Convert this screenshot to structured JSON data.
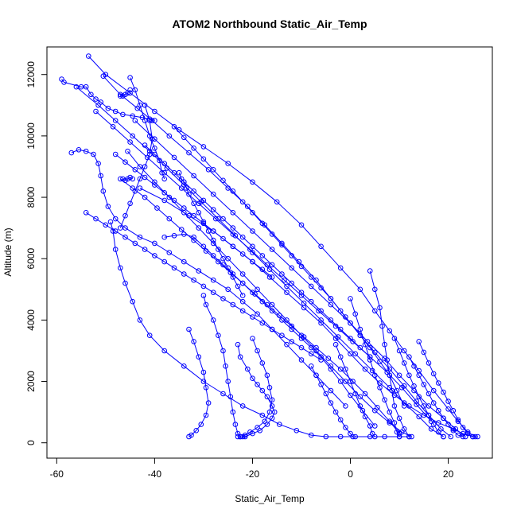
{
  "chart_data": {
    "type": "line",
    "title": "ATOM2 Northbound Static_Air_Temp",
    "xlabel": "Static_Air_Temp",
    "ylabel": "Altitude (m)",
    "xlim": [
      -62,
      29
    ],
    "ylim": [
      -500,
      12900
    ],
    "xticks": [
      -60,
      -40,
      -20,
      0,
      20
    ],
    "yticks": [
      0,
      2000,
      4000,
      6000,
      8000,
      10000,
      12000
    ],
    "grid": false,
    "marker": "open-circle",
    "color": "#0000ff",
    "series": [
      {
        "x": [
          -59.0,
          -58.5,
          -55.0,
          -54.0,
          -53.0,
          -52.0,
          -51.0,
          -49.5,
          -48.0,
          -46.5,
          -44.5,
          -42.5,
          -41.0,
          -40.0
        ],
        "y": [
          11850,
          11750,
          11600,
          11600,
          11350,
          11200,
          11100,
          10900,
          10800,
          10700,
          10650,
          10600,
          10550,
          10500
        ]
      },
      {
        "x": [
          -53.5,
          -50.0,
          -45.0,
          -40.0,
          -35.0,
          -30.0,
          -25.0,
          -20.0,
          -15.0,
          -10.0,
          -6.0,
          -2.0,
          2.0,
          5.0,
          8.0,
          11.0,
          14.0,
          17.0,
          20.0,
          22.0,
          24.0,
          25.5
        ],
        "y": [
          12600,
          12000,
          11400,
          10800,
          10200,
          9650,
          9100,
          8500,
          7850,
          7100,
          6400,
          5700,
          5000,
          4300,
          3650,
          3000,
          2350,
          1700,
          1100,
          700,
          350,
          200
        ]
      },
      {
        "x": [
          -50.5,
          -47.0,
          -43.5,
          -40.5,
          -37.0,
          -33.0,
          -29.0,
          -25.0,
          -21.0,
          -17.5,
          -14.0,
          -10.5,
          -7.0,
          -4.0,
          -1.0,
          2.0,
          5.0,
          8.0,
          11.0,
          13.5,
          16.0,
          18.5,
          20.5
        ],
        "y": [
          11950,
          11350,
          10900,
          10500,
          10000,
          9450,
          8900,
          8300,
          7700,
          7100,
          6500,
          5900,
          5300,
          4700,
          4100,
          3500,
          2950,
          2400,
          1850,
          1350,
          900,
          450,
          200
        ]
      },
      {
        "x": [
          -49.0,
          -48.5,
          -48.0,
          -47.0,
          -46.0,
          -44.5,
          -43.0,
          -41.0,
          -38.0,
          -34.0,
          -30.0,
          -26.0,
          -22.0,
          -18.0,
          -14.5,
          -11.0,
          -8.0,
          -5.0,
          -2.0,
          1.0,
          4.0,
          7.0,
          10.0,
          12.0
        ],
        "y": [
          7200,
          6900,
          6300,
          5700,
          5200,
          4600,
          4000,
          3500,
          3000,
          2500,
          2000,
          1600,
          1200,
          900,
          600,
          400,
          250,
          200,
          200,
          200,
          200,
          200,
          200,
          200
        ]
      },
      {
        "x": [
          -43.0,
          -38.0,
          -33.0,
          -28.0,
          -24.0,
          -20.0,
          -16.5,
          -13.0,
          -9.5,
          -6.0,
          -3.0,
          0.0,
          3.0,
          6.0,
          9.0,
          12.0,
          15.0,
          18.0,
          21.0,
          23.0,
          25.0,
          26.0
        ],
        "y": [
          8300,
          7900,
          7400,
          6900,
          6400,
          5900,
          5400,
          4900,
          4400,
          3900,
          3400,
          2900,
          2400,
          1950,
          1550,
          1200,
          900,
          650,
          450,
          300,
          200,
          200
        ]
      },
      {
        "x": [
          -44.0,
          -40.0,
          -36.0,
          -32.0,
          -28.0,
          -24.0,
          -20.0,
          -16.0,
          -12.0,
          -8.0,
          -4.0,
          0.0,
          3.5,
          7.0,
          10.0,
          13.0,
          16.0,
          19.0,
          21.5,
          23.5
        ],
        "y": [
          10500,
          9900,
          9300,
          8700,
          8100,
          7500,
          6900,
          6300,
          5700,
          5100,
          4500,
          3900,
          3300,
          2750,
          2200,
          1700,
          1200,
          800,
          450,
          200
        ]
      },
      {
        "x": [
          -56.0,
          -51.5,
          -48.0,
          -44.5,
          -41.0,
          -37.5,
          -34.0,
          -30.5,
          -27.0,
          -23.5,
          -20.0,
          -16.5,
          -13.0,
          -9.5,
          -6.0,
          -2.5,
          1.0,
          4.5,
          8.0,
          11.0,
          14.0,
          16.5,
          19.0
        ],
        "y": [
          11600,
          11000,
          10500,
          10000,
          9500,
          8950,
          8400,
          7850,
          7300,
          6750,
          6200,
          5650,
          5100,
          4550,
          4000,
          3450,
          2900,
          2350,
          1800,
          1300,
          850,
          450,
          200
        ]
      },
      {
        "x": [
          -52.0,
          -48.5,
          -45.0,
          -41.5,
          -38.0,
          -34.5,
          -31.0,
          -27.5,
          -24.0,
          -20.5,
          -17.0,
          -13.5,
          -10.0,
          -6.5,
          -3.0,
          0.5,
          4.0,
          7.5,
          10.5,
          13.5,
          16.5
        ],
        "y": [
          10800,
          10300,
          9800,
          9300,
          8800,
          8300,
          7800,
          7300,
          6800,
          6300,
          5800,
          5300,
          4800,
          4300,
          3800,
          3300,
          2800,
          2300,
          1800,
          1250,
          700
        ]
      },
      {
        "x": [
          -45.5,
          -43.0,
          -40.0,
          -37.0,
          -34.0,
          -31.0,
          -28.0,
          -25.0,
          -22.0,
          -19.0,
          -16.0,
          -13.0,
          -10.0,
          -7.0,
          -4.0,
          -1.0,
          2.0,
          5.0,
          8.0,
          10.5,
          12.5
        ],
        "y": [
          9500,
          9000,
          8500,
          8000,
          7500,
          7000,
          6500,
          6000,
          5500,
          5000,
          4500,
          4000,
          3500,
          3000,
          2500,
          2000,
          1500,
          1050,
          650,
          350,
          200
        ]
      },
      {
        "x": [
          -57.0,
          -55.5,
          -54.0,
          -52.5,
          -51.5,
          -51.0,
          -50.5,
          -49.5,
          -48.0,
          -46.0,
          -43.0,
          -40.0,
          -37.0,
          -34.0,
          -31.0,
          -28.0,
          -25.0,
          -22.0,
          -19.0,
          -16.0,
          -13.0,
          -10.0,
          -7.0,
          -4.0,
          -1.0
        ],
        "y": [
          9450,
          9550,
          9500,
          9400,
          9100,
          8700,
          8200,
          7700,
          7300,
          7000,
          6700,
          6500,
          6200,
          5900,
          5600,
          5300,
          5000,
          4600,
          4200,
          3700,
          3200,
          2700,
          2200,
          1700,
          1200
        ]
      },
      {
        "x": [
          -47.0,
          -44.5,
          -42.0,
          -39.5,
          -37.0,
          -34.5,
          -32.0,
          -29.5,
          -27.0,
          -24.5,
          -22.0,
          -19.5,
          -17.0,
          -14.5,
          -12.0,
          -9.5,
          -7.0,
          -4.5,
          -2.0,
          0.5,
          3.0,
          5.5,
          8.0,
          10.0
        ],
        "y": [
          8600,
          8300,
          8000,
          7650,
          7300,
          6950,
          6600,
          6250,
          5900,
          5550,
          5200,
          4850,
          4500,
          4150,
          3800,
          3450,
          3100,
          2750,
          2400,
          2000,
          1600,
          1150,
          700,
          300
        ]
      },
      {
        "x": [
          -42.0,
          -40.0,
          -38.0,
          -36.0,
          -34.0,
          -32.0,
          -30.0,
          -28.0,
          -26.0,
          -24.0,
          -22.0,
          -20.0,
          -18.0,
          -16.0,
          -14.0,
          -12.0,
          -10.0,
          -8.0,
          -6.0,
          -4.0,
          -2.0,
          0.0,
          2.0,
          4.0
        ],
        "y": [
          9700,
          9400,
          9100,
          8800,
          8500,
          8200,
          7900,
          7600,
          7300,
          7000,
          6700,
          6400,
          6100,
          5800,
          5500,
          5200,
          4900,
          4600,
          4300,
          4000,
          3700,
          3400,
          3100,
          2800
        ]
      },
      {
        "x": [
          -36.0,
          -34.0,
          -32.0,
          -30.0,
          -28.0,
          -26.0,
          -24.0,
          -22.0,
          -20.0,
          -18.0,
          -16.0,
          -14.0,
          -12.0,
          -10.0,
          -8.0,
          -6.0,
          -4.0,
          -2.0,
          0.0,
          2.0,
          4.0,
          6.0,
          8.0,
          9.5,
          11.0
        ],
        "y": [
          10300,
          9950,
          9600,
          9250,
          8900,
          8550,
          8200,
          7850,
          7500,
          7150,
          6800,
          6450,
          6100,
          5750,
          5400,
          5050,
          4700,
          4300,
          3900,
          3500,
          3100,
          2650,
          2200,
          1700,
          1200
        ]
      },
      {
        "x": [
          -38.0,
          -36.0,
          -34.0,
          -32.0,
          -30.0,
          -28.0,
          -26.0,
          -24.0,
          -22.0,
          -20.0,
          -18.0,
          -16.0,
          -14.0,
          -12.0,
          -10.0,
          -8.0,
          -6.0,
          -4.0,
          -2.0,
          0.0,
          2.5,
          5.0
        ],
        "y": [
          6700,
          6750,
          6800,
          6700,
          6400,
          6100,
          5800,
          5500,
          5200,
          4900,
          4600,
          4300,
          4000,
          3700,
          3400,
          3100,
          2800,
          2400,
          2000,
          1550,
          1050,
          550
        ]
      },
      {
        "x": [
          -54.0,
          -52.0,
          -50.0,
          -48.0,
          -46.0,
          -44.0,
          -42.0,
          -40.0,
          -38.0,
          -36.0,
          -34.0,
          -32.0,
          -30.0,
          -28.0,
          -26.0,
          -24.0,
          -22.0,
          -20.0,
          -18.0,
          -16.0,
          -14.0,
          -12.0,
          -10.0,
          -8.0,
          -6.0
        ],
        "y": [
          7500,
          7300,
          7100,
          6900,
          6700,
          6500,
          6300,
          6100,
          5900,
          5700,
          5500,
          5300,
          5100,
          4900,
          4700,
          4500,
          4300,
          4100,
          3900,
          3700,
          3500,
          3300,
          3100,
          2900,
          2700
        ]
      },
      {
        "x": [
          -45.0,
          -44.0,
          -43.0,
          -42.0,
          -41.0,
          -40.0,
          -39.0,
          -38.5,
          -38.0
        ],
        "y": [
          11900,
          11500,
          11000,
          10500,
          10000,
          9600,
          9200,
          8800,
          8600
        ]
      },
      {
        "x": [
          -42.0,
          -41.0,
          -40.5,
          -41.0,
          -42.0,
          -43.0,
          -44.0,
          -45.0,
          -46.0,
          -47.0
        ],
        "y": [
          11000,
          10500,
          9900,
          9400,
          9000,
          8600,
          8200,
          7800,
          7400,
          7000
        ]
      },
      {
        "x": [
          -30.0,
          -29.5,
          -28.0,
          -27.0,
          -26.0,
          -25.5,
          -25.0,
          -24.5,
          -24.0,
          -23.5,
          -23.0,
          -22.5
        ],
        "y": [
          4800,
          4500,
          4000,
          3500,
          3000,
          2500,
          2000,
          1500,
          1000,
          600,
          300,
          200
        ]
      },
      {
        "x": [
          -33.0,
          -32.0,
          -31.0,
          -30.0,
          -29.5,
          -29.0,
          -29.5,
          -30.5,
          -31.5,
          -32.5,
          -33.0
        ],
        "y": [
          3700,
          3300,
          2800,
          2300,
          1800,
          1300,
          900,
          600,
          400,
          250,
          200
        ]
      },
      {
        "x": [
          -23.0,
          -22.5,
          -21.0,
          -20.0,
          -19.0,
          -18.0,
          -17.0,
          -16.0,
          -15.5,
          -16.0,
          -17.0,
          -18.5,
          -20.0,
          -21.5,
          -22.5,
          -23.0
        ],
        "y": [
          3200,
          2800,
          2400,
          2100,
          1900,
          1700,
          1500,
          1200,
          1000,
          800,
          600,
          400,
          300,
          200,
          200,
          200
        ]
      },
      {
        "x": [
          -20.0,
          -19.0,
          -18.0,
          -17.0,
          -16.5,
          -16.0,
          -16.5,
          -17.5,
          -19.0,
          -20.5,
          -21.5,
          -22.0
        ],
        "y": [
          3400,
          3000,
          2600,
          2200,
          1800,
          1400,
          1000,
          700,
          500,
          350,
          250,
          200
        ]
      },
      {
        "x": [
          4.0,
          5.0,
          6.0,
          6.5,
          7.0,
          7.5,
          8.0,
          8.5,
          9.0,
          10.0,
          11.0,
          12.0
        ],
        "y": [
          5600,
          5000,
          4400,
          3800,
          3200,
          2700,
          2200,
          1700,
          1200,
          800,
          450,
          200
        ]
      },
      {
        "x": [
          0.0,
          1.0,
          2.0,
          3.0,
          4.0,
          5.0,
          6.0,
          7.0,
          8.0,
          9.0,
          9.5,
          10.0
        ],
        "y": [
          4700,
          4200,
          3700,
          3200,
          2700,
          2200,
          1800,
          1400,
          1000,
          650,
          350,
          200
        ]
      },
      {
        "x": [
          -3.0,
          -2.0,
          -1.0,
          0.0,
          1.0,
          2.0,
          3.0,
          4.0,
          4.5,
          5.0
        ],
        "y": [
          3200,
          2800,
          2400,
          2000,
          1600,
          1200,
          850,
          550,
          300,
          200
        ]
      },
      {
        "x": [
          -8.0,
          -7.0,
          -6.0,
          -5.0,
          -4.0,
          -3.0,
          -2.0,
          -1.0,
          0.0,
          0.5
        ],
        "y": [
          2500,
          2200,
          1900,
          1600,
          1300,
          1000,
          750,
          500,
          300,
          200
        ]
      },
      {
        "x": [
          12.0,
          13.0,
          14.0,
          15.0,
          16.0,
          17.0,
          18.0,
          19.0,
          20.0,
          21.0,
          22.0,
          23.0
        ],
        "y": [
          2800,
          2500,
          2200,
          1900,
          1600,
          1300,
          1050,
          800,
          600,
          400,
          250,
          200
        ]
      },
      {
        "x": [
          9.0,
          10.0,
          11.0,
          12.0,
          13.0,
          14.0,
          15.0,
          16.0,
          17.0,
          18.0,
          19.0
        ],
        "y": [
          3400,
          3000,
          2600,
          2200,
          1850,
          1500,
          1200,
          900,
          600,
          350,
          200
        ]
      },
      {
        "x": [
          14.0,
          15.0,
          16.0,
          17.0,
          18.0,
          19.0,
          20.0,
          21.0,
          22.0,
          23.0,
          24.0,
          25.0
        ],
        "y": [
          3300,
          2950,
          2600,
          2250,
          1950,
          1650,
          1350,
          1050,
          750,
          500,
          300,
          200
        ]
      },
      {
        "x": [
          -48.0,
          -46.0,
          -44.0,
          -42.0,
          -40.0,
          -38.0,
          -36.0,
          -34.0,
          -32.0,
          -30.0,
          -28.0,
          -26.0,
          -24.0,
          -22.0,
          -20.0,
          -18.0,
          -16.0
        ],
        "y": [
          9400,
          9150,
          8900,
          8650,
          8400,
          8150,
          7900,
          7650,
          7400,
          7150,
          6900,
          6650,
          6400,
          6150,
          5900,
          5650,
          5400
        ]
      },
      {
        "x": [
          -35.0,
          -34.5,
          -34.0,
          -33.5,
          -33.0,
          -32.0,
          -31.0,
          -30.0,
          -29.0,
          -28.0,
          -27.0,
          -26.0,
          -25.0,
          -24.0,
          -23.0,
          -22.0
        ],
        "y": [
          8800,
          8600,
          8500,
          8300,
          8100,
          7800,
          7500,
          7200,
          6900,
          6600,
          6300,
          6000,
          5700,
          5400,
          5100,
          4800
        ]
      },
      {
        "x": [
          -47.0,
          -46.5,
          -46.0,
          -45.5,
          -45.0
        ],
        "y": [
          11300,
          11300,
          11350,
          11400,
          11500
        ]
      },
      {
        "x": [
          -46.5,
          -46.0,
          -45.5,
          -45.0,
          -44.5
        ],
        "y": [
          8600,
          8550,
          8600,
          8650,
          8600
        ]
      }
    ]
  }
}
